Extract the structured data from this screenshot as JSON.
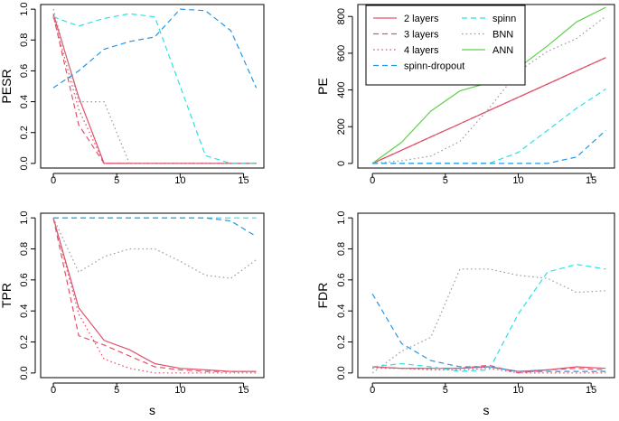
{
  "chart_data": [
    {
      "type": "line",
      "id": "pesr",
      "ylabel": "PESR",
      "xlabel": "",
      "xlim": [
        -1,
        16.6
      ],
      "ylim": [
        -0.03,
        1.03
      ],
      "xticks": [
        0,
        5,
        10,
        15
      ],
      "yticks": [
        0.0,
        0.2,
        0.4,
        0.6,
        0.8,
        1.0
      ],
      "ytick_labels": [
        "0.0",
        "0.2",
        "0.4",
        "0.6",
        "0.8",
        "1.0"
      ],
      "x": [
        0,
        2,
        4,
        6,
        8,
        10,
        12,
        14,
        16
      ],
      "series": [
        {
          "name": "2 layers",
          "values": [
            0.97,
            0.43,
            0.0,
            0.0,
            0.0,
            0.0,
            0.0,
            0.0,
            0.0
          ]
        },
        {
          "name": "3 layers",
          "values": [
            0.96,
            0.25,
            0.0,
            0.0,
            0.0,
            0.0,
            0.0,
            0.0,
            0.0
          ]
        },
        {
          "name": "4 layers",
          "values": [
            0.95,
            0.35,
            0.0,
            0.0,
            0.0,
            0.0,
            0.0,
            0.0,
            0.0
          ]
        },
        {
          "name": "spinn",
          "values": [
            0.95,
            0.89,
            0.94,
            0.97,
            0.95,
            0.5,
            0.05,
            0.0,
            0.0
          ]
        },
        {
          "name": "BNN",
          "values": [
            1.0,
            0.4,
            0.4,
            0.0,
            0.0,
            0.0,
            0.0,
            0.0,
            0.0
          ]
        },
        {
          "name": "ANN",
          "values": [
            null,
            null,
            null,
            null,
            null,
            null,
            null,
            null,
            null
          ]
        },
        {
          "name": "spinn-dropout",
          "values": [
            0.49,
            0.6,
            0.74,
            0.79,
            0.82,
            1.0,
            0.99,
            0.86,
            0.49
          ]
        }
      ]
    },
    {
      "type": "line",
      "id": "pe",
      "ylabel": "PE",
      "xlabel": "",
      "xlim": [
        -1,
        16.6
      ],
      "ylim": [
        -25,
        865
      ],
      "xticks": [
        0,
        5,
        10,
        15
      ],
      "yticks": [
        0,
        200,
        400,
        600,
        800
      ],
      "ytick_labels": [
        "0",
        "200",
        "400",
        "600",
        "800"
      ],
      "x": [
        0,
        2,
        4,
        6,
        8,
        10,
        12,
        14,
        16
      ],
      "series": [
        {
          "name": "2 layers",
          "values": [
            0,
            72,
            144,
            216,
            288,
            360,
            432,
            504,
            576
          ]
        },
        {
          "name": "3 layers",
          "values": [
            0,
            72,
            144,
            216,
            288,
            360,
            432,
            504,
            576
          ]
        },
        {
          "name": "4 layers",
          "values": [
            0,
            72,
            144,
            216,
            288,
            360,
            432,
            504,
            576
          ]
        },
        {
          "name": "spinn",
          "values": [
            0,
            0,
            0,
            0,
            0,
            60,
            180,
            300,
            405
          ]
        },
        {
          "name": "BNN",
          "values": [
            0,
            15,
            40,
            120,
            300,
            500,
            610,
            680,
            800
          ]
        },
        {
          "name": "ANN",
          "values": [
            0,
            115,
            285,
            395,
            440,
            520,
            640,
            770,
            850
          ]
        },
        {
          "name": "spinn-dropout",
          "values": [
            0,
            0,
            0,
            0,
            0,
            0,
            0,
            35,
            180
          ]
        }
      ],
      "legend": {
        "position": "top-left",
        "entries": [
          "2 layers",
          "3 layers",
          "4 layers",
          "spinn-dropout",
          "spinn",
          "BNN",
          "ANN"
        ]
      }
    },
    {
      "type": "line",
      "id": "tpr",
      "ylabel": "TPR",
      "xlabel": "s",
      "xlim": [
        -1,
        16.6
      ],
      "ylim": [
        -0.03,
        1.03
      ],
      "xticks": [
        0,
        5,
        10,
        15
      ],
      "yticks": [
        0.0,
        0.2,
        0.4,
        0.6,
        0.8,
        1.0
      ],
      "ytick_labels": [
        "0.0",
        "0.2",
        "0.4",
        "0.6",
        "0.8",
        "1.0"
      ],
      "x": [
        0,
        2,
        4,
        6,
        8,
        10,
        12,
        14,
        16
      ],
      "series": [
        {
          "name": "2 layers",
          "values": [
            1.0,
            0.42,
            0.21,
            0.15,
            0.06,
            0.03,
            0.02,
            0.01,
            0.01
          ]
        },
        {
          "name": "3 layers",
          "values": [
            1.0,
            0.24,
            0.18,
            0.11,
            0.04,
            0.02,
            0.01,
            0.01,
            0.01
          ]
        },
        {
          "name": "4 layers",
          "values": [
            1.0,
            0.38,
            0.09,
            0.03,
            0.0,
            0.0,
            0.0,
            0.0,
            0.0
          ]
        },
        {
          "name": "spinn",
          "values": [
            1.0,
            1.0,
            1.0,
            1.0,
            1.0,
            1.0,
            1.0,
            1.0,
            1.0
          ]
        },
        {
          "name": "BNN",
          "values": [
            1.0,
            0.65,
            0.75,
            0.8,
            0.8,
            0.72,
            0.63,
            0.61,
            0.73
          ]
        },
        {
          "name": "ANN",
          "values": [
            null,
            null,
            null,
            null,
            null,
            null,
            null,
            null,
            null
          ]
        },
        {
          "name": "spinn-dropout",
          "values": [
            1.0,
            1.0,
            1.0,
            1.0,
            1.0,
            1.0,
            1.0,
            0.98,
            0.88
          ]
        }
      ]
    },
    {
      "type": "line",
      "id": "fdr",
      "ylabel": "FDR",
      "xlabel": "s",
      "xlim": [
        -1,
        16.6
      ],
      "ylim": [
        -0.03,
        1.03
      ],
      "xticks": [
        0,
        5,
        10,
        15
      ],
      "yticks": [
        0.0,
        0.2,
        0.4,
        0.6,
        0.8,
        1.0
      ],
      "ytick_labels": [
        "0.0",
        "0.2",
        "0.4",
        "0.6",
        "0.8",
        "1.0"
      ],
      "x": [
        0,
        2,
        4,
        6,
        8,
        10,
        12,
        14,
        16
      ],
      "series": [
        {
          "name": "2 layers",
          "values": [
            0.04,
            0.03,
            0.03,
            0.03,
            0.04,
            0.01,
            0.02,
            0.04,
            0.03
          ]
        },
        {
          "name": "3 layers",
          "values": [
            0.04,
            0.03,
            0.03,
            0.03,
            0.05,
            0.0,
            0.02,
            0.03,
            0.02
          ]
        },
        {
          "name": "4 layers",
          "values": [
            0.03,
            0.03,
            0.02,
            0.02,
            0.03,
            0.0,
            0.0,
            0.0,
            0.0
          ]
        },
        {
          "name": "spinn",
          "values": [
            0.04,
            0.06,
            0.04,
            0.01,
            0.02,
            0.38,
            0.65,
            0.7,
            0.67
          ]
        },
        {
          "name": "BNN",
          "values": [
            0.0,
            0.14,
            0.23,
            0.67,
            0.67,
            0.63,
            0.61,
            0.52,
            0.53
          ]
        },
        {
          "name": "ANN",
          "values": [
            null,
            null,
            null,
            null,
            null,
            null,
            null,
            null,
            null
          ]
        },
        {
          "name": "spinn-dropout",
          "values": [
            0.51,
            0.19,
            0.08,
            0.04,
            0.04,
            0.01,
            0.01,
            0.01,
            0.01
          ]
        }
      ]
    }
  ],
  "styles": {
    "2 layers": {
      "color": "#DF536B",
      "dash": "solid"
    },
    "3 layers": {
      "color": "#DF536B",
      "dash": "dashed"
    },
    "4 layers": {
      "color": "#DF536B",
      "dash": "dotted"
    },
    "spinn": {
      "color": "#28E2E5",
      "dash": "dashed"
    },
    "BNN": {
      "color": "#9E9E9E",
      "dash": "dotted"
    },
    "ANN": {
      "color": "#61D04F",
      "dash": "solid"
    },
    "spinn-dropout": {
      "color": "#2297E6",
      "dash": "dashed"
    }
  }
}
